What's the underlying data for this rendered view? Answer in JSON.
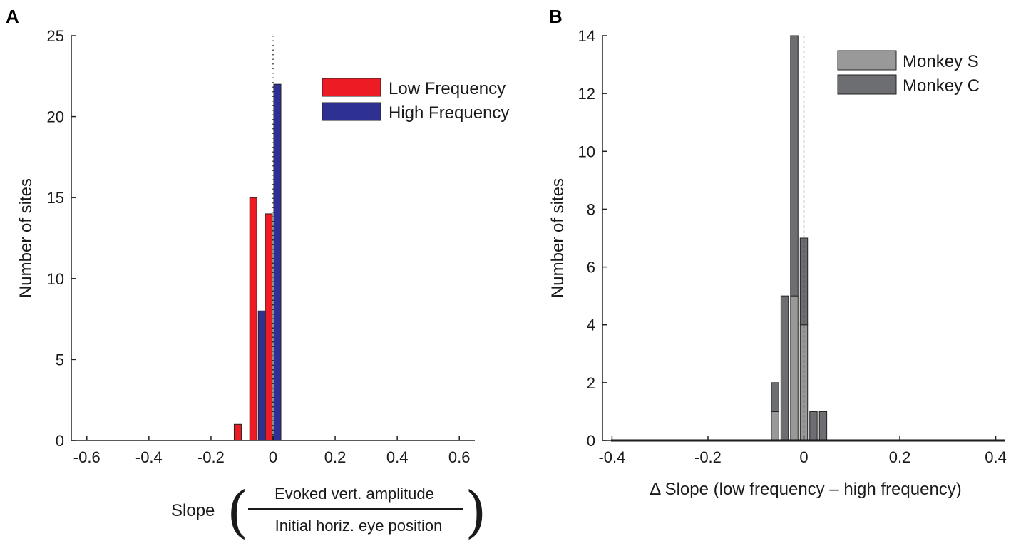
{
  "chart_data": [
    {
      "panel": "A",
      "type": "bar",
      "ylabel": "Number of sites",
      "xlim": [
        -0.65,
        0.65
      ],
      "ylim": [
        0,
        25
      ],
      "xticks": [
        -0.6,
        -0.4,
        -0.2,
        0,
        0.2,
        0.4,
        0.6
      ],
      "xtick_labels": [
        "-0.6",
        "-0.4",
        "-0.2",
        "0",
        "0.2",
        "0.4",
        "0.6"
      ],
      "yticks": [
        0,
        5,
        10,
        15,
        20,
        25
      ],
      "ytick_labels": [
        "0",
        "5",
        "10",
        "15",
        "20",
        "25"
      ],
      "bin_centers": [
        -0.6,
        -0.55,
        -0.5,
        -0.45,
        -0.4,
        -0.35,
        -0.3,
        -0.25,
        -0.2,
        -0.15,
        -0.1,
        -0.05,
        0.0,
        0.05,
        0.1,
        0.15,
        0.2,
        0.25,
        0.3,
        0.35,
        0.4,
        0.45,
        0.5,
        0.55,
        0.6
      ],
      "series": [
        {
          "name": "Low Frequency",
          "color": "#ed1c24",
          "values": [
            0,
            0,
            0,
            0,
            0,
            0,
            0,
            0,
            0,
            0,
            1,
            15,
            14,
            0,
            0,
            0,
            0,
            0,
            0,
            0,
            0,
            0,
            0,
            0,
            0
          ]
        },
        {
          "name": "High Frequency",
          "color": "#2e3192",
          "values": [
            0,
            0,
            0,
            0,
            0,
            0,
            0,
            0,
            0,
            0,
            0,
            8,
            22,
            0,
            0,
            0,
            0,
            0,
            0,
            0,
            0,
            0,
            0,
            0,
            0
          ]
        }
      ],
      "xlabel": {
        "prefix": "Slope",
        "numerator": "Evoked vert. amplitude",
        "denominator": "Initial horiz. eye position"
      },
      "legend_position": "top-right",
      "reference_line_x": 0
    },
    {
      "panel": "B",
      "type": "bar",
      "stacked": true,
      "ylabel": "Number of sites",
      "xlabel": "Δ Slope (low frequency – high frequency)",
      "xlim": [
        -0.42,
        0.42
      ],
      "ylim": [
        0,
        14
      ],
      "xticks": [
        -0.4,
        -0.2,
        0,
        0.2,
        0.4
      ],
      "xtick_labels": [
        "-0.4",
        "-0.2",
        "0",
        "0.2",
        "0.4"
      ],
      "yticks": [
        0,
        2,
        4,
        6,
        8,
        10,
        12,
        14
      ],
      "ytick_labels": [
        "0",
        "2",
        "4",
        "6",
        "8",
        "10",
        "12",
        "14"
      ],
      "bin_width": 0.02,
      "bin_centers": [
        -0.08,
        -0.06,
        -0.04,
        -0.02,
        0.0,
        0.02,
        0.04,
        0.06,
        0.08
      ],
      "series": [
        {
          "name": "Monkey S",
          "color": "#999999",
          "values": [
            0,
            1,
            0,
            5,
            4,
            0,
            0,
            0,
            0
          ]
        },
        {
          "name": "Monkey C",
          "color": "#6d6e71",
          "values": [
            0,
            1,
            5,
            9,
            3,
            1,
            1,
            0,
            0
          ]
        }
      ],
      "legend_position": "top-right",
      "reference_line_x": 0
    }
  ]
}
